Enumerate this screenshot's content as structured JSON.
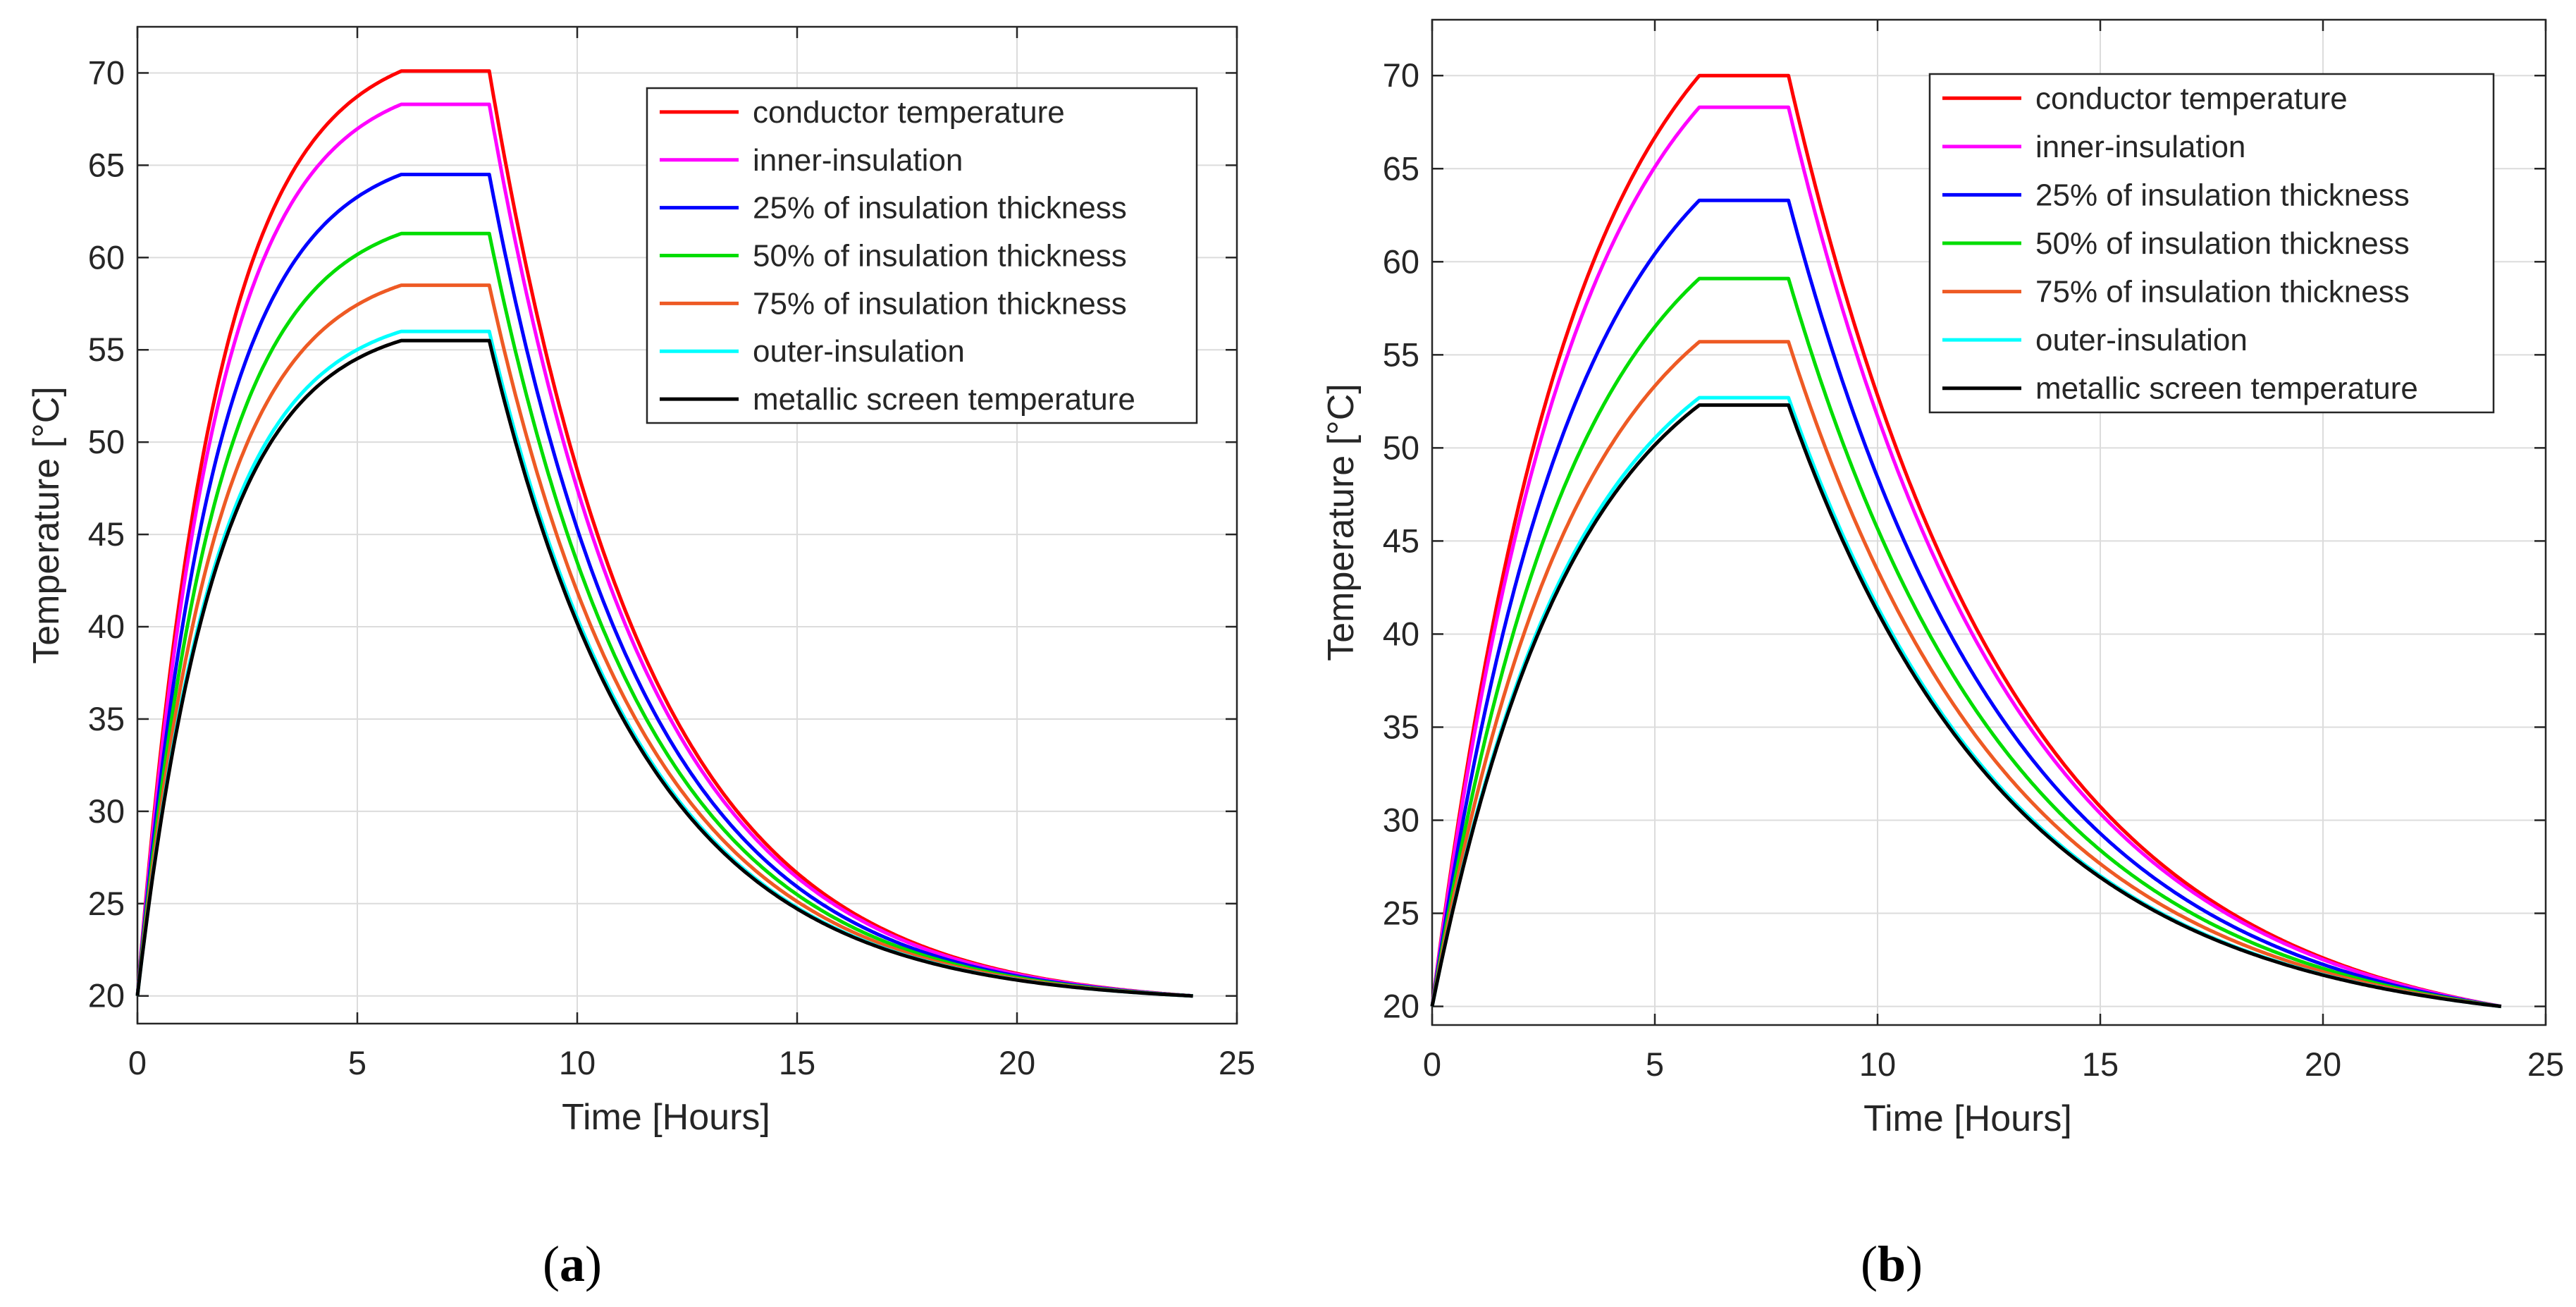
{
  "figure": {
    "panel_labels": [
      {
        "open": "(",
        "letter": "a",
        "close": ")"
      },
      {
        "open": "(",
        "letter": "b",
        "close": ")"
      }
    ]
  },
  "chart_data": [
    {
      "type": "line",
      "panel": "a",
      "title": "",
      "xlabel": "Time [Hours]",
      "ylabel": "Temperature [°C]",
      "xlim": [
        0,
        25
      ],
      "ylim": [
        18.5,
        72.5
      ],
      "xticks": [
        0,
        5,
        10,
        15,
        20,
        25
      ],
      "yticks": [
        20,
        25,
        30,
        35,
        40,
        45,
        50,
        55,
        60,
        65,
        70
      ],
      "grid": true,
      "legend_location": "top-right",
      "tau_heat": 1.8,
      "tau_cool": 3.6,
      "x_start": 0,
      "x_hold_start": 6,
      "x_hold_end": 8,
      "x_end": 24,
      "start_value": 20,
      "end_value": 20,
      "series": [
        {
          "name": "conductor temperature",
          "color": "#ff0000",
          "peak": 70.1
        },
        {
          "name": "inner-insulation",
          "color": "#ff00ff",
          "peak": 68.3
        },
        {
          "name": "25% of insulation thickness",
          "color": "#0000ff",
          "peak": 64.5
        },
        {
          "name": "50% of insulation thickness",
          "color": "#00dd00",
          "peak": 61.3
        },
        {
          "name": "75% of insulation thickness",
          "color": "#ee5a24",
          "peak": 58.5
        },
        {
          "name": "outer-insulation",
          "color": "#00ffff",
          "peak": 56.0
        },
        {
          "name": "metallic screen temperature",
          "color": "#000000",
          "peak": 55.5
        }
      ]
    },
    {
      "type": "line",
      "panel": "b",
      "title": "",
      "xlabel": "Time [Hours]",
      "ylabel": "Temperature [°C]",
      "xlim": [
        0,
        25
      ],
      "ylim": [
        19,
        73
      ],
      "xticks": [
        0,
        5,
        10,
        15,
        20,
        25
      ],
      "yticks": [
        20,
        25,
        30,
        35,
        40,
        45,
        50,
        55,
        60,
        65,
        70
      ],
      "grid": true,
      "legend_location": "top-right",
      "tau_heat": 3.2,
      "tau_cool": 5.0,
      "x_start": 0,
      "x_hold_start": 6,
      "x_hold_end": 8,
      "x_end": 24,
      "start_value": 20,
      "end_value": 20,
      "series": [
        {
          "name": "conductor temperature",
          "color": "#ff0000",
          "peak": 70.0
        },
        {
          "name": "inner-insulation",
          "color": "#ff00ff",
          "peak": 68.3
        },
        {
          "name": "25% of insulation thickness",
          "color": "#0000ff",
          "peak": 63.3
        },
        {
          "name": "50% of insulation thickness",
          "color": "#00dd00",
          "peak": 59.1
        },
        {
          "name": "75% of insulation thickness",
          "color": "#ee5a24",
          "peak": 55.7
        },
        {
          "name": "outer-insulation",
          "color": "#00ffff",
          "peak": 52.7
        },
        {
          "name": "metallic screen temperature",
          "color": "#000000",
          "peak": 52.3
        }
      ]
    }
  ]
}
